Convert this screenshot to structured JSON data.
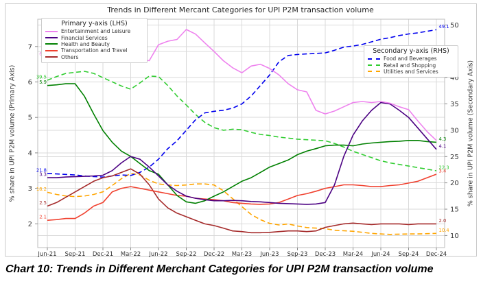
{
  "title": "Trends in Different Mercant Categories for UPI P2M transaction volume",
  "caption": "Chart 10: Trends in Different Merchant Categories for UPI P2M transaction volume",
  "axes": {
    "left": {
      "label": "% share in UPI P2M volume (Primary Axis)",
      "ticks": [
        2,
        3,
        4,
        5,
        6,
        7
      ],
      "range": [
        1.33,
        7.77
      ]
    },
    "right": {
      "label": "% share in UPI P2M volume (Secondary Axis)",
      "ticks": [
        10,
        15,
        20,
        25,
        30,
        35,
        40,
        45,
        50
      ],
      "range": [
        7.7,
        51.1
      ]
    },
    "x_tick_labels": [
      "Jun-21",
      "Sep-21",
      "Dec-21",
      "Mar-22",
      "Jun-22",
      "Sep-22",
      "Dec-22",
      "Mar-23",
      "Jun-23",
      "Sep-23",
      "Dec-23",
      "Mar-24",
      "Jun-24",
      "Sep-24",
      "Dec-24"
    ]
  },
  "legend_primary": {
    "title": "Primary y-axis (LHS)",
    "items": [
      {
        "label": "Entertainment and Leisure",
        "color": "#ee82ee",
        "style": "solid"
      },
      {
        "label": "Financial Services",
        "color": "#4b0082",
        "style": "solid"
      },
      {
        "label": "Health and Beauty",
        "color": "#008000",
        "style": "solid"
      },
      {
        "label": "Transportation and Travel",
        "color": "#f0402e",
        "style": "solid"
      },
      {
        "label": "Others",
        "color": "#a52a2a",
        "style": "solid"
      }
    ]
  },
  "legend_secondary": {
    "title": "Secondary y-axis (RHS)",
    "items": [
      {
        "label": "Food and Beverages",
        "color": "#0000ee",
        "style": "dashed"
      },
      {
        "label": "Retail and Shopping",
        "color": "#32cd32",
        "style": "dashed"
      },
      {
        "label": "Utilities and Services",
        "color": "#ffa500",
        "style": "dashed"
      }
    ]
  },
  "chart_data": {
    "type": "line",
    "grid": true,
    "x": [
      "Jun-21",
      "Jul-21",
      "Aug-21",
      "Sep-21",
      "Oct-21",
      "Nov-21",
      "Dec-21",
      "Jan-22",
      "Feb-22",
      "Mar-22",
      "Apr-22",
      "May-22",
      "Jun-22",
      "Jul-22",
      "Aug-22",
      "Sep-22",
      "Oct-22",
      "Nov-22",
      "Dec-22",
      "Jan-23",
      "Feb-23",
      "Mar-23",
      "Apr-23",
      "May-23",
      "Jun-23",
      "Jul-23",
      "Aug-23",
      "Sep-23",
      "Oct-23",
      "Nov-23",
      "Dec-23",
      "Jan-24",
      "Feb-24",
      "Mar-24",
      "Apr-24",
      "May-24",
      "Jun-24",
      "Jul-24",
      "Aug-24",
      "Sep-24",
      "Oct-24",
      "Nov-24",
      "Dec-24"
    ],
    "x_tick_every": 3,
    "series": [
      {
        "name": "Entertainment and Leisure",
        "axis": "LHS",
        "color": "#ee82ee",
        "style": "solid",
        "start_label": "6.7",
        "end_label": null,
        "values": [
          6.7,
          6.75,
          6.9,
          7.0,
          7.0,
          6.95,
          7.1,
          7.12,
          7.1,
          7.1,
          6.65,
          6.6,
          7.05,
          7.15,
          7.2,
          7.48,
          7.35,
          7.1,
          6.86,
          6.6,
          6.4,
          6.26,
          6.45,
          6.5,
          6.38,
          6.2,
          5.95,
          5.78,
          5.72,
          5.2,
          5.1,
          5.18,
          5.3,
          5.42,
          5.45,
          5.42,
          5.45,
          5.4,
          5.3,
          5.22,
          4.9,
          4.6,
          4.35
        ]
      },
      {
        "name": "Financial Services",
        "axis": "LHS",
        "color": "#4b0082",
        "style": "solid",
        "start_label": "3.3",
        "end_label": "4.1",
        "values": [
          3.3,
          3.3,
          3.32,
          3.33,
          3.34,
          3.35,
          3.37,
          3.5,
          3.72,
          3.9,
          3.82,
          3.6,
          3.35,
          3.1,
          2.92,
          2.78,
          2.72,
          2.68,
          2.65,
          2.65,
          2.66,
          2.65,
          2.63,
          2.62,
          2.6,
          2.58,
          2.57,
          2.56,
          2.55,
          2.56,
          2.6,
          3.1,
          3.9,
          4.5,
          4.9,
          5.2,
          5.42,
          5.38,
          5.2,
          5.0,
          4.7,
          4.4,
          4.1
        ]
      },
      {
        "name": "Health and Beauty",
        "axis": "LHS",
        "color": "#008000",
        "style": "solid",
        "start_label": "5.9",
        "end_label": "4.3",
        "values": [
          5.9,
          5.92,
          5.95,
          5.95,
          5.6,
          5.1,
          4.63,
          4.3,
          4.05,
          3.9,
          3.7,
          3.5,
          3.4,
          3.1,
          2.8,
          2.62,
          2.58,
          2.65,
          2.78,
          2.9,
          3.05,
          3.2,
          3.3,
          3.45,
          3.6,
          3.7,
          3.8,
          3.95,
          4.05,
          4.12,
          4.2,
          4.22,
          4.22,
          4.2,
          4.25,
          4.28,
          4.3,
          4.32,
          4.33,
          4.35,
          4.35,
          4.32,
          4.3
        ]
      },
      {
        "name": "Transportation and Travel",
        "axis": "LHS",
        "color": "#f0402e",
        "style": "solid",
        "start_label": "2.1",
        "end_label": "3.4",
        "values": [
          2.1,
          2.12,
          2.15,
          2.15,
          2.3,
          2.5,
          2.6,
          2.9,
          3.0,
          3.05,
          3.0,
          2.95,
          2.9,
          2.85,
          2.8,
          2.78,
          2.72,
          2.7,
          2.68,
          2.65,
          2.6,
          2.58,
          2.56,
          2.55,
          2.56,
          2.6,
          2.7,
          2.8,
          2.85,
          2.92,
          3.0,
          3.05,
          3.1,
          3.1,
          3.08,
          3.05,
          3.05,
          3.08,
          3.1,
          3.15,
          3.2,
          3.3,
          3.4
        ]
      },
      {
        "name": "Others",
        "axis": "LHS",
        "color": "#a52a2a",
        "style": "solid",
        "start_label": "2.5",
        "end_label": "2.0",
        "values": [
          2.5,
          2.6,
          2.75,
          2.9,
          3.05,
          3.2,
          3.3,
          3.35,
          3.45,
          3.55,
          3.4,
          3.1,
          2.7,
          2.45,
          2.3,
          2.2,
          2.1,
          2.0,
          1.95,
          1.88,
          1.8,
          1.78,
          1.75,
          1.75,
          1.76,
          1.78,
          1.8,
          1.8,
          1.78,
          1.8,
          1.9,
          1.95,
          2.0,
          2.02,
          2.0,
          1.98,
          2.0,
          2.0,
          2.0,
          1.98,
          2.0,
          2.0,
          2.0
        ]
      },
      {
        "name": "Food and Beverages",
        "axis": "RHS",
        "color": "#0000ee",
        "style": "dashed",
        "start_label": "21.8",
        "end_label": "49.1",
        "values": [
          21.8,
          21.7,
          21.6,
          21.5,
          21.3,
          21.2,
          21.1,
          21.3,
          21.5,
          21.4,
          22.0,
          23.0,
          24.5,
          26.5,
          28.0,
          30.0,
          32.0,
          33.3,
          33.6,
          33.8,
          34.2,
          35.0,
          36.5,
          38.5,
          40.5,
          43.0,
          44.2,
          44.4,
          44.5,
          44.6,
          44.7,
          45.2,
          45.8,
          46.0,
          46.3,
          46.8,
          47.3,
          47.6,
          48.0,
          48.3,
          48.5,
          48.8,
          49.1
        ]
      },
      {
        "name": "Retail and Shopping",
        "axis": "RHS",
        "color": "#32cd32",
        "style": "dashed",
        "start_label": "39.5",
        "end_label": "22.3",
        "values": [
          39.5,
          40.2,
          40.8,
          41.0,
          41.2,
          40.8,
          40.0,
          39.2,
          38.4,
          37.8,
          39.0,
          40.3,
          40.2,
          38.5,
          36.5,
          34.8,
          33.0,
          31.5,
          30.5,
          30.0,
          30.2,
          30.1,
          29.6,
          29.2,
          29.0,
          28.7,
          28.5,
          28.3,
          28.2,
          28.1,
          28.0,
          27.5,
          26.8,
          26.0,
          25.4,
          24.8,
          24.2,
          23.8,
          23.5,
          23.2,
          22.9,
          22.6,
          22.3
        ]
      },
      {
        "name": "Utilities and Services",
        "axis": "RHS",
        "color": "#ffa500",
        "style": "dashed",
        "start_label": "18.2",
        "end_label": "10.4",
        "values": [
          18.2,
          17.8,
          17.5,
          17.4,
          17.5,
          17.8,
          18.3,
          19.5,
          20.8,
          21.8,
          21.5,
          20.5,
          19.8,
          19.6,
          19.5,
          19.6,
          19.8,
          19.8,
          19.6,
          18.5,
          17.0,
          15.5,
          14.0,
          13.0,
          12.3,
          12.0,
          12.2,
          11.8,
          11.5,
          11.4,
          11.3,
          11.0,
          10.9,
          10.8,
          10.6,
          10.4,
          10.3,
          10.2,
          10.25,
          10.3,
          10.3,
          10.35,
          10.4
        ]
      }
    ],
    "style": {
      "grid_color": "#d9d9d9",
      "spine_color": "#bdbdbd",
      "tick_color": "#8a8a8a",
      "tick_label_color": "#333333"
    }
  }
}
